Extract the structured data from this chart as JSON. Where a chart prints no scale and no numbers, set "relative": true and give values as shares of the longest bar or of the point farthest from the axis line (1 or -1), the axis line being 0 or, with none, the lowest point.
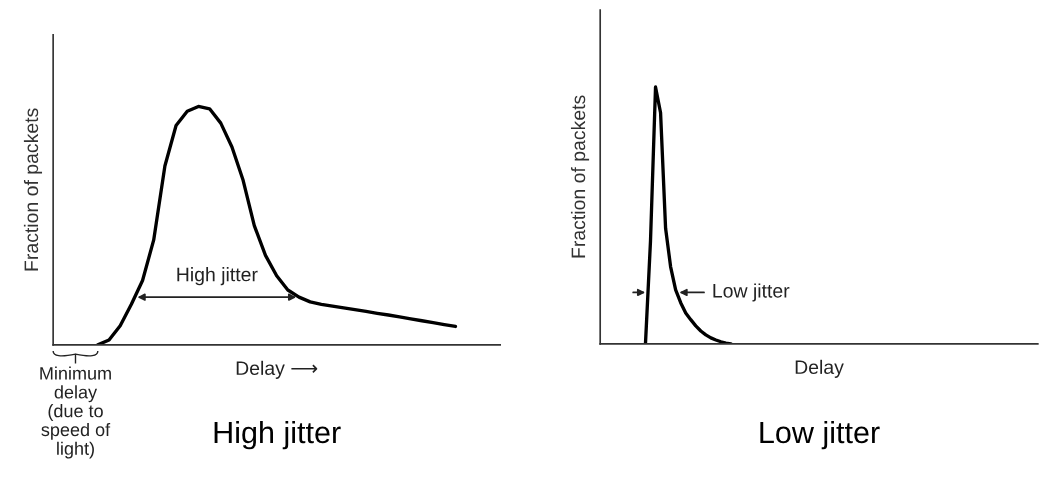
{
  "chart_data": [
    {
      "type": "line",
      "title": "High jitter",
      "xlabel": "Delay ⟶",
      "ylabel": "Fraction of packets",
      "relative": true,
      "categories": [
        null,
        null,
        null,
        null,
        null,
        null,
        null,
        null,
        null,
        null,
        null,
        null,
        null,
        null,
        null,
        null,
        null,
        null,
        null,
        null,
        null,
        null,
        null,
        null,
        null,
        null,
        null,
        null,
        null,
        null,
        null,
        null,
        null,
        null,
        null,
        null,
        null,
        null,
        null,
        null,
        null
      ],
      "series": [
        {
          "color": "#000000",
          "values": [
            null,
            null,
            null,
            null,
            0,
            0.02,
            0.08,
            0.17,
            0.27,
            0.44,
            0.75,
            0.92,
            0.98,
            1.0,
            0.99,
            0.93,
            0.83,
            0.69,
            0.5,
            0.375,
            0.29,
            0.23,
            0.2,
            0.18,
            0.17,
            0.162,
            0.155,
            0.148,
            0.14,
            0.132,
            0.125,
            0.117,
            0.109,
            0.101,
            0.093,
            0.085,
            0.077,
            null,
            null,
            null,
            null
          ]
        }
      ],
      "annotations": [
        "High jitter",
        "Minimum\ndelay\n(due to\nspeed of\nlight)"
      ]
    },
    {
      "type": "line",
      "title": "Low jitter",
      "xlabel": "Delay",
      "ylabel": "Fraction of packets",
      "relative": true,
      "categories": [
        null,
        null,
        null,
        null,
        null,
        null,
        null,
        null,
        null,
        null,
        null,
        null,
        null,
        null,
        null,
        null,
        null,
        null,
        null,
        null,
        null,
        null,
        null,
        null,
        null,
        null,
        null,
        null,
        null,
        null,
        null,
        null,
        null,
        null,
        null,
        null,
        null,
        null,
        null,
        null,
        null,
        null,
        null,
        null,
        null,
        null,
        null,
        null,
        null,
        null,
        null,
        null,
        null,
        null,
        null,
        null,
        null,
        null,
        null,
        null,
        null,
        null,
        null,
        null,
        null,
        null,
        null,
        null,
        null,
        null,
        null,
        null,
        null,
        null,
        null,
        null,
        null,
        null,
        null,
        null,
        null,
        null,
        null,
        null,
        null,
        null,
        null,
        null
      ],
      "series": [
        {
          "color": "#000000",
          "values": [
            null,
            null,
            null,
            null,
            null,
            null,
            null,
            null,
            null,
            0,
            0.4,
            1.0,
            0.9,
            0.45,
            0.3,
            0.21,
            0.16,
            0.12,
            0.094,
            0.07,
            0.05,
            0.035,
            0.023,
            0.015,
            0.008,
            0.003,
            0,
            null,
            null,
            null,
            null,
            null,
            null,
            null,
            null,
            null,
            null,
            null,
            null,
            null,
            null,
            null,
            null,
            null,
            null,
            null,
            null,
            null,
            null,
            null,
            null,
            null,
            null,
            null,
            null,
            null,
            null,
            null,
            null,
            null,
            null,
            null,
            null,
            null,
            null,
            null,
            null,
            null,
            null,
            null,
            null,
            null,
            null,
            null,
            null,
            null,
            null,
            null,
            null,
            null,
            null,
            null,
            null,
            null,
            null,
            null,
            null,
            null
          ]
        }
      ],
      "annotations": [
        "Low jitter"
      ]
    }
  ]
}
